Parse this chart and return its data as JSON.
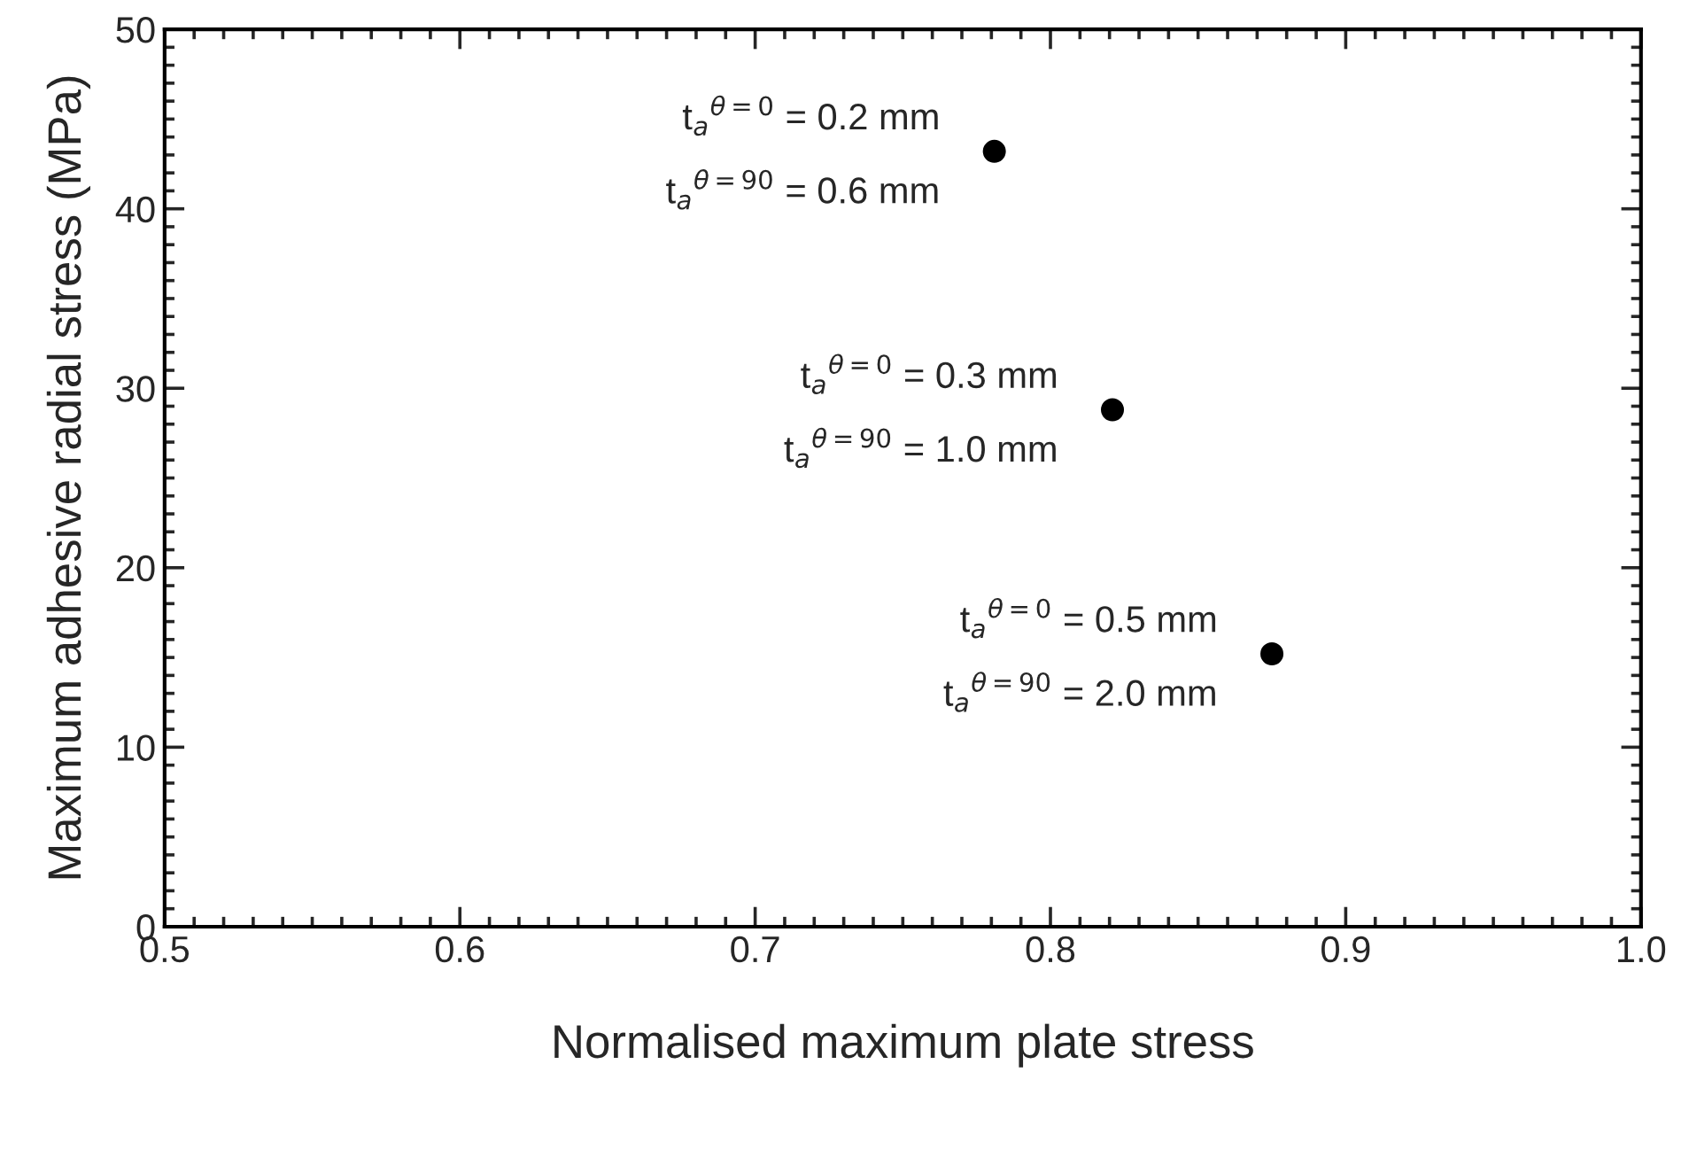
{
  "chart_data": {
    "type": "scatter",
    "xlabel": "Normalised maximum plate stress",
    "ylabel": "Maximum adhesive radial stress (MPa)",
    "x": [
      0.781,
      0.821,
      0.875
    ],
    "series": [
      {
        "color": "#000000",
        "values": [
          43.2,
          28.8,
          15.2
        ]
      }
    ],
    "marker": "circle",
    "xlim": [
      0.5,
      1.0
    ],
    "ylim": [
      0,
      50
    ],
    "xticks": [
      0.5,
      0.6,
      0.7,
      0.8,
      0.9,
      {
        "value": 1.0,
        "label": "1.0"
      }
    ],
    "yticks": [
      0,
      10,
      20,
      30,
      40,
      50
    ],
    "grid": false,
    "legend": false,
    "annotations": [
      {
        "text": "t$_{a}$$^{θ=0}$ = 0.2 mm",
        "x": 0.781,
        "y": 43.2
      },
      {
        "text": "t$_{a}$$^{θ=90}$ = 0.6 mm",
        "x": 0.781,
        "y": 43.2
      },
      {
        "text": "t$_{a}$$^{θ=0}$ = 0.3 mm",
        "x": 0.821,
        "y": 28.8
      },
      {
        "text": "t$_{a}$$^{θ=90}$ = 1.0 mm",
        "x": 0.821,
        "y": 28.8
      },
      {
        "text": "t$_{a}$$^{θ=0}$ = 0.5 mm",
        "x": 0.875,
        "y": 15.2
      },
      {
        "text": "t$_{a}$$^{θ=90}$ = 2.0 mm",
        "x": 0.875,
        "y": 15.2
      }
    ]
  }
}
